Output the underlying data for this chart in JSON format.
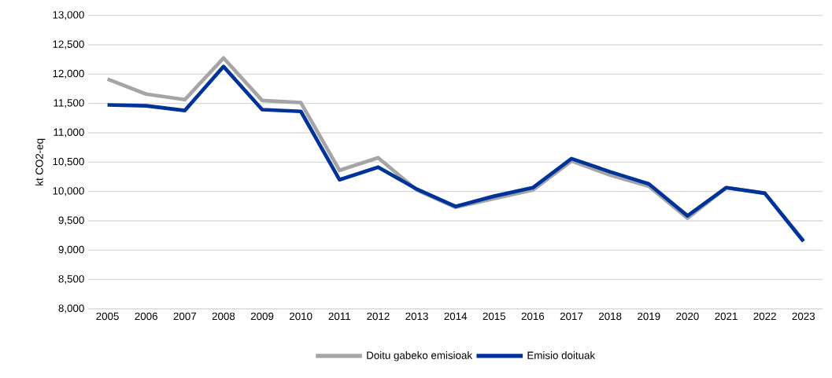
{
  "chart_data": {
    "type": "line",
    "ylabel": "kt CO2-eq",
    "categories": [
      "2005",
      "2006",
      "2007",
      "2008",
      "2009",
      "2010",
      "2011",
      "2012",
      "2013",
      "2014",
      "2015",
      "2016",
      "2017",
      "2018",
      "2019",
      "2020",
      "2021",
      "2022",
      "2023"
    ],
    "series": [
      {
        "name": "Doitu gabeko emisioak",
        "color": "#a5a5a5",
        "values": [
          11915,
          11660,
          11565,
          12275,
          11550,
          11515,
          10360,
          10575,
          10025,
          9730,
          9880,
          10025,
          10520,
          10280,
          10090,
          9545,
          10065,
          9970,
          9165
        ]
      },
      {
        "name": "Emisio doituak",
        "color": "#003399",
        "values": [
          11475,
          11460,
          11380,
          12130,
          11395,
          11365,
          10200,
          10415,
          10040,
          9745,
          9920,
          10065,
          10560,
          10335,
          10130,
          9585,
          10065,
          9970,
          9150
        ]
      }
    ],
    "ylim": [
      8000,
      13000
    ],
    "yticks": [
      {
        "value": 8000,
        "label": "8,000"
      },
      {
        "value": 8500,
        "label": "8,500"
      },
      {
        "value": 9000,
        "label": "9,000"
      },
      {
        "value": 9500,
        "label": "9,500"
      },
      {
        "value": 10000,
        "label": "10,000"
      },
      {
        "value": 10500,
        "label": "10,500"
      },
      {
        "value": 11000,
        "label": "11,000"
      },
      {
        "value": 11500,
        "label": "11,500"
      },
      {
        "value": 12000,
        "label": "12,000"
      },
      {
        "value": 12500,
        "label": "12,500"
      },
      {
        "value": 13000,
        "label": "13,000"
      }
    ],
    "grid": "y",
    "legend": "bottom",
    "marker": "none",
    "line_style": "solid"
  }
}
